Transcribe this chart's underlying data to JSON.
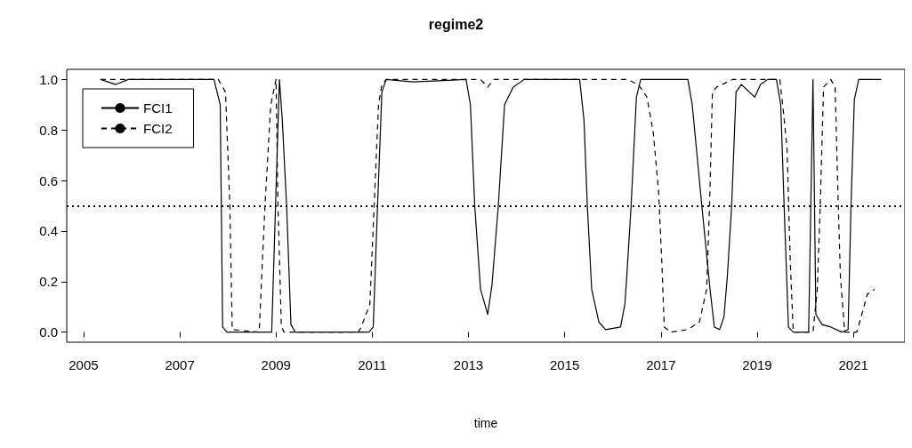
{
  "chart_data": {
    "type": "line",
    "title": "regime2",
    "xlabel": "time",
    "xlim": [
      2004.65,
      2022.07
    ],
    "xticks": [
      2005,
      2007,
      2009,
      2011,
      2013,
      2015,
      2017,
      2019,
      2021
    ],
    "ylim": [
      -0.04,
      1.04
    ],
    "yticks": [
      {
        "value": 0,
        "label": "0.0"
      },
      {
        "value": 0.2,
        "label": "0.2"
      },
      {
        "value": 0.4,
        "label": "0.4"
      },
      {
        "value": 0.6,
        "label": "0.6"
      },
      {
        "value": 0.8,
        "label": "0.8"
      },
      {
        "value": 1,
        "label": "1.0"
      }
    ],
    "grid": false,
    "legend": "top left",
    "marker": "none",
    "ref_lines": [
      {
        "axis": "y",
        "value": 0.5,
        "color": "#000000",
        "line_style": "dotted"
      }
    ],
    "series": [
      {
        "name": "FCI1",
        "color": "#000000",
        "line_style": "solid",
        "x": [
          2005.35,
          2005.67,
          2005.93,
          2007.71,
          2007.84,
          2007.89,
          2007.98,
          2008.91,
          2009.07,
          2009.13,
          2009.22,
          2009.31,
          2009.4,
          2010.93,
          2011.02,
          2011.11,
          2011.2,
          2011.29,
          2011.84,
          2012.95,
          2013.04,
          2013.13,
          2013.25,
          2013.4,
          2013.49,
          2013.62,
          2013.75,
          2013.93,
          2014.16,
          2015.31,
          2015.4,
          2015.47,
          2015.56,
          2015.71,
          2015.85,
          2016.16,
          2016.25,
          2016.29,
          2016.38,
          2016.49,
          2016.58,
          2017.56,
          2017.65,
          2017.85,
          2018.02,
          2018.11,
          2018.22,
          2018.31,
          2018.38,
          2018.47,
          2018.56,
          2018.67,
          2018.84,
          2018.95,
          2019.07,
          2019.22,
          2019.4,
          2019.49,
          2019.56,
          2019.65,
          2019.75,
          2020.07,
          2020.16,
          2020.22,
          2020.35,
          2020.53,
          2020.76,
          2020.89,
          2020.95,
          2021.02,
          2021.11,
          2021.58
        ],
        "values": [
          1,
          0.98,
          1,
          1,
          0.9,
          0.02,
          0,
          0,
          1,
          0.84,
          0.5,
          0.03,
          0,
          0,
          0.02,
          0.5,
          0.95,
          1,
          0.99,
          1,
          0.9,
          0.5,
          0.17,
          0.07,
          0.19,
          0.5,
          0.9,
          0.97,
          1,
          1,
          0.84,
          0.5,
          0.17,
          0.04,
          0.01,
          0.02,
          0.11,
          0.22,
          0.5,
          0.93,
          1,
          1,
          0.9,
          0.5,
          0.17,
          0.02,
          0.01,
          0.06,
          0.22,
          0.5,
          0.95,
          0.98,
          0.95,
          0.93,
          0.98,
          1,
          1,
          0.9,
          0.5,
          0.02,
          0,
          0,
          1,
          0.07,
          0.03,
          0.02,
          0,
          0.01,
          0.5,
          0.92,
          1,
          1
        ]
      },
      {
        "name": "FCI2",
        "color": "#000000",
        "line_style": "dashed",
        "x": [
          2005.35,
          2007.8,
          2007.95,
          2008.04,
          2008.09,
          2008.65,
          2008.77,
          2008.89,
          2009.0,
          2009.04,
          2009.11,
          2009.16,
          2010.71,
          2010.77,
          2010.95,
          2011.04,
          2011.13,
          2011.2,
          2011.29,
          2013.25,
          2013.4,
          2013.53,
          2016.3,
          2016.53,
          2016.71,
          2016.84,
          2016.95,
          2017.02,
          2017.07,
          2017.2,
          2017.56,
          2017.8,
          2017.95,
          2018.01,
          2018.07,
          2018.16,
          2018.49,
          2019.47,
          2019.53,
          2019.62,
          2019.69,
          2019.75,
          2020.16,
          2020.25,
          2020.31,
          2020.38,
          2020.53,
          2020.62,
          2020.67,
          2020.73,
          2020.82,
          2021.07,
          2021.16,
          2021.29,
          2021.44
        ],
        "values": [
          1,
          1,
          0.95,
          0.5,
          0.01,
          0,
          0.5,
          0.9,
          1,
          0.5,
          0.03,
          0,
          0,
          0.02,
          0.11,
          0.5,
          0.9,
          0.98,
          1,
          1,
          0.97,
          1,
          1,
          0.98,
          0.93,
          0.79,
          0.56,
          0.27,
          0.02,
          0,
          0.01,
          0.04,
          0.17,
          0.5,
          0.95,
          0.97,
          1,
          1,
          0.9,
          0.73,
          0.27,
          0,
          0,
          0.17,
          0.5,
          0.97,
          1,
          0.97,
          0.61,
          0.22,
          0,
          0,
          0.06,
          0.15,
          0.17
        ]
      }
    ]
  }
}
